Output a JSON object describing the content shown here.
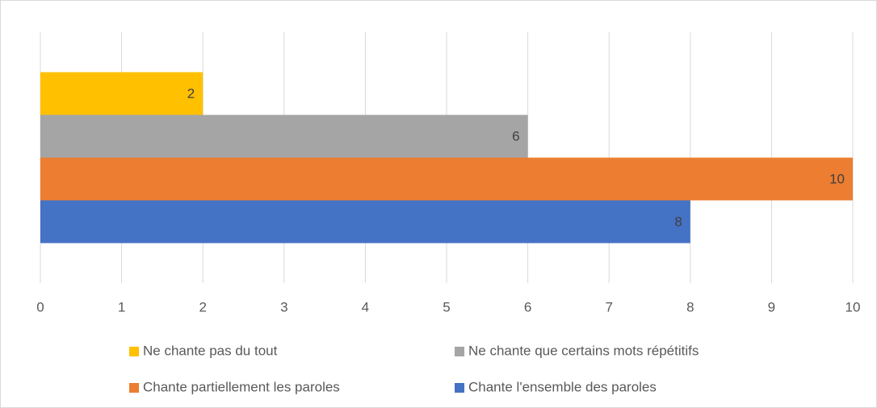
{
  "chart_data": {
    "type": "bar",
    "orientation": "horizontal",
    "categories": [
      null
    ],
    "series": [
      {
        "name": "Ne chante pas du tout",
        "color": "#ffc000",
        "values": [
          2
        ]
      },
      {
        "name": "Ne chante que certains mots répétitifs",
        "color": "#a5a5a5",
        "values": [
          6
        ]
      },
      {
        "name": "Chante partiellement les paroles",
        "color": "#ed7d31",
        "values": [
          10
        ]
      },
      {
        "name": "Chante l'ensemble des paroles",
        "color": "#4472c4",
        "values": [
          8
        ]
      }
    ],
    "xlim": [
      0,
      10
    ],
    "xticks": [
      0,
      1,
      2,
      3,
      4,
      5,
      6,
      7,
      8,
      9,
      10
    ],
    "grid": true,
    "legend": "bottom",
    "data_labels": true
  }
}
